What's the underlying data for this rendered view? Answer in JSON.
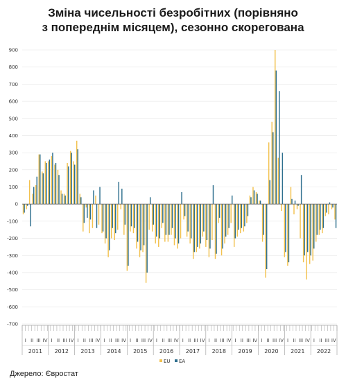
{
  "chart_data": {
    "type": "bar",
    "title_lines": [
      "Зміна чисельності безробітних (порівняно",
      "з попереднім місяцем), сезонно скорегована"
    ],
    "ylim": [
      -700,
      900
    ],
    "y_ticks": [
      "900",
      "800",
      "700",
      "600",
      "500",
      "400",
      "300",
      "200",
      "100",
      "0",
      "-100",
      "-200",
      "-300",
      "-400",
      "-500",
      "-600",
      "-700"
    ],
    "grid": true,
    "legend_position": "bottom-right",
    "colors": {
      "EU": "#f2c14e",
      "EA": "#2e6f8e"
    },
    "years": [
      "2011",
      "2012",
      "2013",
      "2014",
      "2015",
      "2016",
      "2017",
      "2018",
      "2019",
      "2020",
      "2021",
      "2022"
    ],
    "quarter_labels": [
      "I",
      "II",
      "III",
      "IV"
    ],
    "series": [
      {
        "name": "EU",
        "values": [
          -60,
          -30,
          140,
          60,
          110,
          290,
          190,
          250,
          250,
          280,
          230,
          200,
          80,
          60,
          240,
          310,
          250,
          370,
          60,
          -160,
          -20,
          -170,
          -140,
          50,
          -120,
          -170,
          -230,
          -310,
          -200,
          -210,
          -150,
          -30,
          -180,
          -390,
          -160,
          -170,
          -260,
          -310,
          -280,
          -460,
          -150,
          -160,
          -230,
          -250,
          -140,
          -220,
          -220,
          -180,
          -240,
          -260,
          -200,
          -90,
          -190,
          -230,
          -320,
          -280,
          -260,
          -190,
          -250,
          -310,
          -210,
          -320,
          -110,
          -300,
          -230,
          -180,
          -110,
          -250,
          -190,
          -170,
          -160,
          -110,
          50,
          100,
          70,
          20,
          -220,
          -430,
          360,
          480,
          900,
          270,
          -40,
          -310,
          -360,
          100,
          -60,
          -30,
          -200,
          -340,
          -440,
          -350,
          -330,
          -220,
          -180,
          -170,
          -70,
          -60,
          -30,
          -90
        ]
      },
      {
        "name": "EA",
        "values": [
          -50,
          -10,
          -130,
          100,
          160,
          290,
          180,
          240,
          260,
          300,
          240,
          170,
          60,
          50,
          220,
          300,
          230,
          320,
          40,
          -110,
          -80,
          -90,
          80,
          -140,
          100,
          -160,
          -200,
          -270,
          -140,
          -170,
          130,
          90,
          -120,
          -360,
          -130,
          -140,
          -220,
          -270,
          -240,
          -400,
          40,
          -120,
          -190,
          -200,
          -110,
          -180,
          -180,
          -140,
          -200,
          -230,
          70,
          -70,
          -160,
          -200,
          -280,
          -250,
          -230,
          -160,
          -210,
          -260,
          110,
          -290,
          -80,
          -260,
          -190,
          -140,
          50,
          -200,
          -150,
          -140,
          -130,
          -70,
          40,
          80,
          60,
          20,
          -180,
          -380,
          140,
          420,
          780,
          660,
          300,
          -280,
          -340,
          30,
          20,
          -10,
          170,
          -300,
          -280,
          -300,
          -260,
          -180,
          -150,
          -140,
          -50,
          10,
          -20,
          -140
        ]
      }
    ]
  },
  "legend": {
    "eu": "EU",
    "ea": "EA"
  },
  "source_note": "Джерело: Євростат"
}
